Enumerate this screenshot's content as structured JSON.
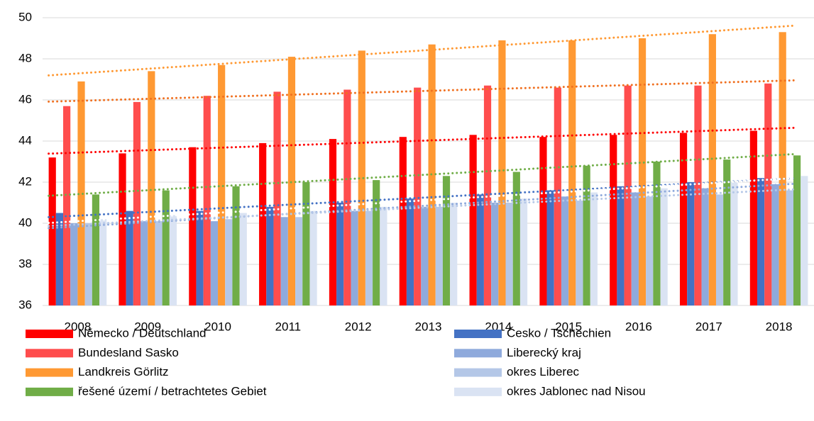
{
  "chart_data": {
    "type": "bar",
    "categories": [
      "2008",
      "2009",
      "2010",
      "2011",
      "2012",
      "2013",
      "2014",
      "2015",
      "2016",
      "2017",
      "2018"
    ],
    "series": [
      {
        "name": "Německo / Deutschland",
        "color": "#ff0000",
        "values": [
          43.2,
          43.4,
          43.7,
          43.9,
          44.1,
          44.2,
          44.3,
          44.2,
          44.3,
          44.4,
          44.5
        ]
      },
      {
        "name": "Česko / Tschechien",
        "color": "#4472c4",
        "values": [
          40.5,
          40.6,
          40.6,
          40.8,
          41.0,
          41.2,
          41.4,
          41.6,
          41.8,
          42.0,
          42.2
        ]
      },
      {
        "name": "Bundesland Sasko",
        "color": "#ff4d4d",
        "values": [
          45.7,
          45.9,
          46.2,
          46.4,
          46.5,
          46.6,
          46.7,
          46.6,
          46.7,
          46.7,
          46.8
        ]
      },
      {
        "name": "Liberecký kraj",
        "color": "#8faadc",
        "values": [
          40.0,
          40.1,
          40.1,
          40.3,
          40.6,
          40.8,
          41.0,
          41.3,
          41.5,
          41.7,
          41.9
        ]
      },
      {
        "name": "Landkreis Görlitz",
        "color": "#ff9933",
        "values": [
          46.9,
          47.4,
          47.7,
          48.1,
          48.4,
          48.7,
          48.9,
          48.9,
          49.0,
          49.2,
          49.3
        ]
      },
      {
        "name": "okres Liberec",
        "color": "#b4c7e7",
        "values": [
          40.0,
          40.1,
          40.2,
          40.3,
          40.6,
          40.8,
          41.0,
          41.1,
          41.3,
          41.4,
          41.6
        ]
      },
      {
        "name": "řešené území / betrachtetes Gebiet",
        "color": "#70ad47",
        "values": [
          41.4,
          41.6,
          41.8,
          42.0,
          42.1,
          42.3,
          42.5,
          42.8,
          43.0,
          43.1,
          43.3
        ]
      },
      {
        "name": "okres Jablonec nad Nisou",
        "color": "#dae3f3",
        "values": [
          40.2,
          40.4,
          40.5,
          40.6,
          40.8,
          41.0,
          41.2,
          41.5,
          41.7,
          42.0,
          42.3
        ]
      }
    ],
    "ylim": [
      36,
      50
    ],
    "yticks": [
      36,
      38,
      40,
      42,
      44,
      46,
      48,
      50
    ],
    "grid": true,
    "trendlines": true,
    "legend": "bottom"
  }
}
